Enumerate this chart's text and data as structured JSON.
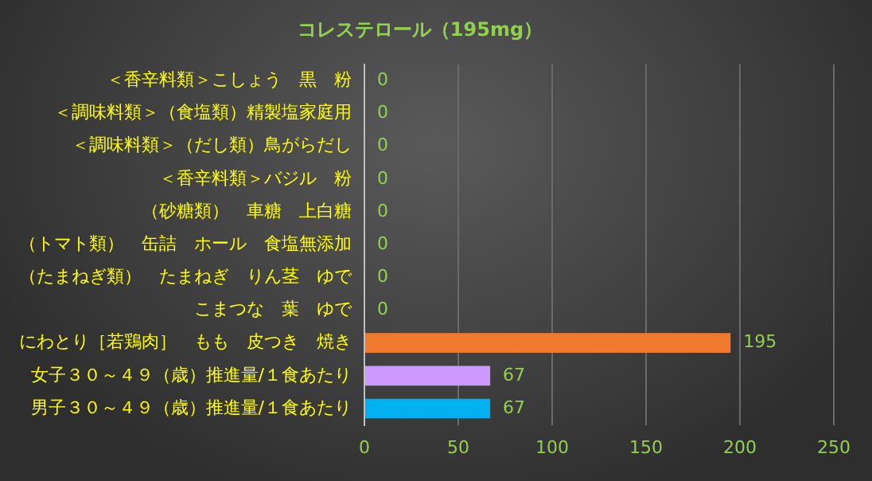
{
  "chart_data": {
    "type": "bar",
    "orientation": "horizontal",
    "title": "コレステロール（195mg）",
    "categories": [
      "＜香辛料類＞こしょう　黒　粉",
      "＜調味料類＞（食塩類）精製塩家庭用",
      "＜調味料類＞（だし類）鳥がらだし",
      "＜香辛料類＞バジル　粉",
      "（砂糖類）　車糖　上白糖",
      "（トマト類）　缶詰　ホール　食塩無添加",
      "（たまねぎ類）　たまねぎ　りん茎　ゆで",
      "こまつな　葉　ゆで",
      "にわとり［若鶏肉］　もも　皮つき　焼き",
      "女子３０～４９（歳）推進量/１食あたり",
      "男子３０～４９（歳）推進量/１食あたり"
    ],
    "values": [
      0,
      0,
      0,
      0,
      0,
      0,
      0,
      0,
      195,
      67,
      67
    ],
    "colors": [
      "#f07b2e",
      "#f07b2e",
      "#f07b2e",
      "#f07b2e",
      "#f07b2e",
      "#f07b2e",
      "#f07b2e",
      "#f07b2e",
      "#f07b2e",
      "#cc99ff",
      "#00b0f0"
    ],
    "xlim": [
      0,
      250
    ],
    "xticks": [
      0,
      50,
      100,
      150,
      200,
      250
    ],
    "grid": "x",
    "data_labels": true,
    "legend": false
  }
}
